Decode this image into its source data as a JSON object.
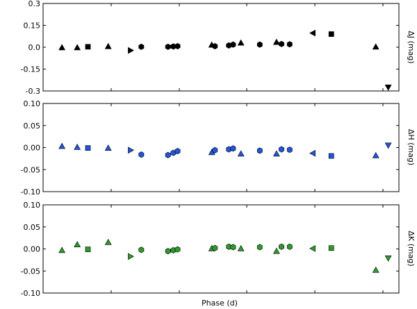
{
  "chart_data": [
    {
      "type": "scatter",
      "id": "J",
      "ylabel": "ΔJ (mag)",
      "ylim": [
        -0.3,
        0.3
      ],
      "yticks": [
        0.3,
        0.15,
        0.0,
        -0.15,
        -0.3
      ],
      "ytick_labels": [
        "0.3",
        "0.15",
        "0.0",
        "-0.15",
        "-0.3"
      ],
      "color": "#000000",
      "xlim": [
        0,
        1
      ],
      "points": [
        {
          "x": 0.053,
          "y": -0.002,
          "marker": "triangle-up"
        },
        {
          "x": 0.096,
          "y": -0.002,
          "marker": "triangle-up"
        },
        {
          "x": 0.126,
          "y": 0.003,
          "marker": "square"
        },
        {
          "x": 0.183,
          "y": 0.006,
          "marker": "triangle-up"
        },
        {
          "x": 0.246,
          "y": -0.022,
          "marker": "triangle-right"
        },
        {
          "x": 0.276,
          "y": 0.003,
          "marker": "hexagon"
        },
        {
          "x": 0.351,
          "y": 0.003,
          "marker": "hexagon"
        },
        {
          "x": 0.366,
          "y": 0.005,
          "marker": "hexagon"
        },
        {
          "x": 0.378,
          "y": 0.007,
          "marker": "hexagon"
        },
        {
          "x": 0.474,
          "y": 0.016,
          "marker": "triangle-up"
        },
        {
          "x": 0.483,
          "y": 0.007,
          "marker": "hexagon"
        },
        {
          "x": 0.522,
          "y": 0.012,
          "marker": "hexagon"
        },
        {
          "x": 0.534,
          "y": 0.018,
          "marker": "hexagon"
        },
        {
          "x": 0.556,
          "y": 0.03,
          "marker": "triangle-up"
        },
        {
          "x": 0.609,
          "y": 0.018,
          "marker": "hexagon"
        },
        {
          "x": 0.656,
          "y": 0.035,
          "marker": "triangle-up"
        },
        {
          "x": 0.67,
          "y": 0.022,
          "marker": "hexagon"
        },
        {
          "x": 0.693,
          "y": 0.02,
          "marker": "hexagon"
        },
        {
          "x": 0.758,
          "y": 0.097,
          "marker": "triangle-left"
        },
        {
          "x": 0.81,
          "y": 0.09,
          "marker": "square"
        },
        {
          "x": 0.935,
          "y": 0.003,
          "marker": "triangle-up"
        },
        {
          "x": 0.97,
          "y": -0.275,
          "marker": "triangle-down"
        }
      ]
    },
    {
      "type": "scatter",
      "id": "H",
      "ylabel": "ΔH (mag)",
      "ylim": [
        -0.1,
        0.1
      ],
      "yticks": [
        0.1,
        0.05,
        0.0,
        -0.05,
        -0.1
      ],
      "ytick_labels": [
        "0.10",
        "0.05",
        "0.00",
        "-0.05",
        "-0.10"
      ],
      "color": "#2255dd",
      "xlim": [
        0,
        1
      ],
      "points": [
        {
          "x": 0.053,
          "y": 0.003,
          "marker": "triangle-up"
        },
        {
          "x": 0.096,
          "y": 0.001,
          "marker": "triangle-up"
        },
        {
          "x": 0.126,
          "y": -0.001,
          "marker": "square"
        },
        {
          "x": 0.183,
          "y": -0.001,
          "marker": "triangle-up"
        },
        {
          "x": 0.246,
          "y": -0.006,
          "marker": "triangle-right"
        },
        {
          "x": 0.276,
          "y": -0.016,
          "marker": "hexagon"
        },
        {
          "x": 0.351,
          "y": -0.017,
          "marker": "hexagon"
        },
        {
          "x": 0.366,
          "y": -0.012,
          "marker": "hexagon"
        },
        {
          "x": 0.378,
          "y": -0.008,
          "marker": "hexagon"
        },
        {
          "x": 0.474,
          "y": -0.011,
          "marker": "triangle-up"
        },
        {
          "x": 0.483,
          "y": -0.006,
          "marker": "hexagon"
        },
        {
          "x": 0.522,
          "y": -0.004,
          "marker": "hexagon"
        },
        {
          "x": 0.534,
          "y": -0.002,
          "marker": "hexagon"
        },
        {
          "x": 0.556,
          "y": -0.014,
          "marker": "triangle-up"
        },
        {
          "x": 0.609,
          "y": -0.007,
          "marker": "hexagon"
        },
        {
          "x": 0.656,
          "y": -0.014,
          "marker": "triangle-up"
        },
        {
          "x": 0.67,
          "y": -0.004,
          "marker": "hexagon"
        },
        {
          "x": 0.693,
          "y": -0.005,
          "marker": "hexagon"
        },
        {
          "x": 0.758,
          "y": -0.013,
          "marker": "triangle-left"
        },
        {
          "x": 0.81,
          "y": -0.019,
          "marker": "square"
        },
        {
          "x": 0.935,
          "y": -0.018,
          "marker": "triangle-up"
        },
        {
          "x": 0.97,
          "y": 0.005,
          "marker": "triangle-down"
        }
      ]
    },
    {
      "type": "scatter",
      "id": "K",
      "ylabel": "ΔK (mag)",
      "xlabel": "Phase (d)",
      "ylim": [
        -0.1,
        0.1
      ],
      "yticks": [
        0.1,
        0.05,
        0.0,
        -0.05,
        -0.1
      ],
      "ytick_labels": [
        "0.10",
        "0.05",
        "0.00",
        "-0.05",
        "-0.10"
      ],
      "color": "#2e9a2e",
      "xlim": [
        0,
        1
      ],
      "points": [
        {
          "x": 0.053,
          "y": -0.003,
          "marker": "triangle-up"
        },
        {
          "x": 0.096,
          "y": 0.01,
          "marker": "triangle-up"
        },
        {
          "x": 0.126,
          "y": -0.001,
          "marker": "square"
        },
        {
          "x": 0.183,
          "y": 0.015,
          "marker": "triangle-up"
        },
        {
          "x": 0.246,
          "y": -0.017,
          "marker": "triangle-right"
        },
        {
          "x": 0.276,
          "y": -0.002,
          "marker": "hexagon"
        },
        {
          "x": 0.351,
          "y": -0.005,
          "marker": "hexagon"
        },
        {
          "x": 0.366,
          "y": -0.003,
          "marker": "hexagon"
        },
        {
          "x": 0.378,
          "y": -0.001,
          "marker": "hexagon"
        },
        {
          "x": 0.474,
          "y": 0.001,
          "marker": "triangle-up"
        },
        {
          "x": 0.483,
          "y": 0.002,
          "marker": "hexagon"
        },
        {
          "x": 0.522,
          "y": 0.005,
          "marker": "hexagon"
        },
        {
          "x": 0.534,
          "y": 0.004,
          "marker": "hexagon"
        },
        {
          "x": 0.556,
          "y": 0.001,
          "marker": "triangle-up"
        },
        {
          "x": 0.609,
          "y": 0.004,
          "marker": "hexagon"
        },
        {
          "x": 0.656,
          "y": -0.005,
          "marker": "triangle-up"
        },
        {
          "x": 0.67,
          "y": 0.005,
          "marker": "hexagon"
        },
        {
          "x": 0.693,
          "y": 0.005,
          "marker": "hexagon"
        },
        {
          "x": 0.758,
          "y": 0.001,
          "marker": "triangle-left"
        },
        {
          "x": 0.81,
          "y": 0.002,
          "marker": "square"
        },
        {
          "x": 0.935,
          "y": -0.048,
          "marker": "triangle-up"
        },
        {
          "x": 0.97,
          "y": -0.021,
          "marker": "triangle-down"
        }
      ]
    }
  ]
}
